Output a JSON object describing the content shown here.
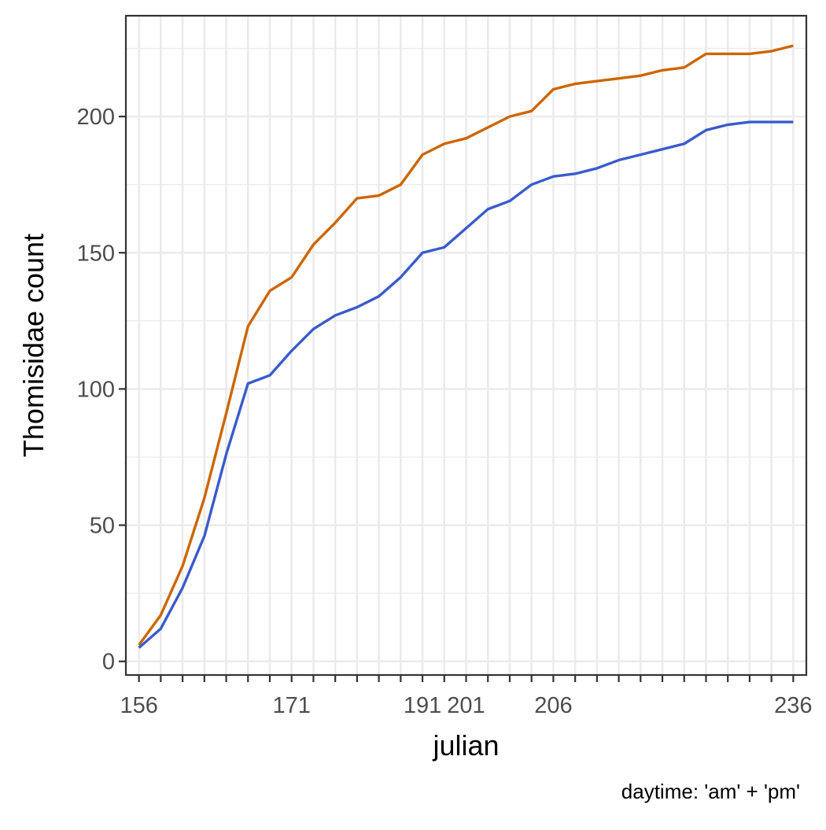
{
  "chart_data": {
    "type": "line",
    "xlabel": "julian",
    "ylabel": "Thomisidae count",
    "caption": "daytime: 'am' + 'pm'",
    "xlim": [
      1,
      31
    ],
    "ylim": [
      -5,
      237
    ],
    "x_ticks": [
      {
        "pos": 1,
        "label": "156"
      },
      {
        "pos": 2,
        "label": ""
      },
      {
        "pos": 3,
        "label": ""
      },
      {
        "pos": 4,
        "label": ""
      },
      {
        "pos": 5,
        "label": ""
      },
      {
        "pos": 6,
        "label": ""
      },
      {
        "pos": 7,
        "label": ""
      },
      {
        "pos": 8,
        "label": "171"
      },
      {
        "pos": 9,
        "label": ""
      },
      {
        "pos": 10,
        "label": ""
      },
      {
        "pos": 11,
        "label": ""
      },
      {
        "pos": 12,
        "label": ""
      },
      {
        "pos": 13,
        "label": ""
      },
      {
        "pos": 14,
        "label": "191"
      },
      {
        "pos": 15,
        "label": ""
      },
      {
        "pos": 16,
        "label": "201"
      },
      {
        "pos": 17,
        "label": ""
      },
      {
        "pos": 18,
        "label": ""
      },
      {
        "pos": 19,
        "label": ""
      },
      {
        "pos": 20,
        "label": "206"
      },
      {
        "pos": 21,
        "label": ""
      },
      {
        "pos": 22,
        "label": ""
      },
      {
        "pos": 23,
        "label": ""
      },
      {
        "pos": 24,
        "label": ""
      },
      {
        "pos": 25,
        "label": ""
      },
      {
        "pos": 26,
        "label": ""
      },
      {
        "pos": 27,
        "label": ""
      },
      {
        "pos": 28,
        "label": ""
      },
      {
        "pos": 29,
        "label": ""
      },
      {
        "pos": 30,
        "label": ""
      },
      {
        "pos": 31,
        "label": "236"
      }
    ],
    "y_ticks": [
      0,
      50,
      100,
      150,
      200
    ],
    "y_minor": [
      25,
      75,
      125,
      175,
      225
    ],
    "grid": true,
    "legend": "none",
    "series": [
      {
        "color": "#CC6600",
        "x": [
          1,
          2,
          3,
          4,
          5,
          6,
          7,
          8,
          9,
          10,
          11,
          12,
          13,
          14,
          15,
          16,
          17,
          18,
          19,
          20,
          21,
          22,
          23,
          24,
          25,
          26,
          27,
          28,
          29,
          30,
          31
        ],
        "values": [
          6,
          17,
          35,
          60,
          91,
          123,
          136,
          141,
          153,
          161,
          170,
          171,
          175,
          186,
          190,
          192,
          196,
          200,
          202,
          210,
          212,
          213,
          214,
          215,
          217,
          218,
          223,
          223,
          223,
          224,
          226
        ]
      },
      {
        "color": "#3A5BCC",
        "x": [
          1,
          2,
          3,
          4,
          5,
          6,
          7,
          8,
          9,
          10,
          11,
          12,
          13,
          14,
          15,
          16,
          17,
          18,
          19,
          20,
          21,
          22,
          23,
          24,
          25,
          26,
          27,
          28,
          29,
          30,
          31
        ],
        "values": [
          5,
          12,
          27,
          46,
          76,
          102,
          105,
          114,
          122,
          127,
          130,
          134,
          141,
          150,
          152,
          159,
          166,
          169,
          175,
          178,
          179,
          181,
          184,
          186,
          188,
          190,
          195,
          197,
          198,
          198,
          198
        ]
      }
    ]
  }
}
